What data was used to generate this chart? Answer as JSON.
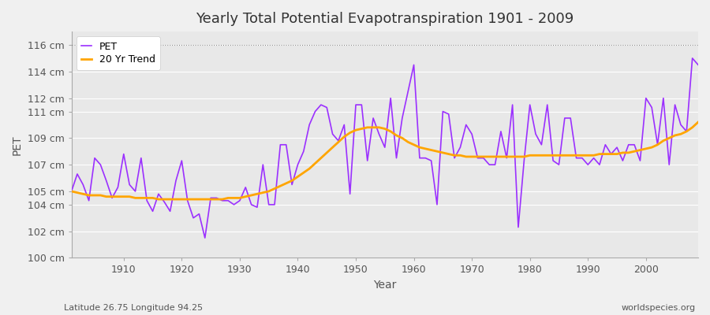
{
  "title": "Yearly Total Potential Evapotranspiration 1901 - 2009",
  "xlabel": "Year",
  "ylabel": "PET",
  "subtitle_left": "Latitude 26.75 Longitude 94.25",
  "subtitle_right": "worldspecies.org",
  "ylim": [
    100,
    117
  ],
  "xlim": [
    1901,
    2009
  ],
  "yticks": [
    100,
    102,
    104,
    105,
    107,
    109,
    111,
    112,
    114,
    116
  ],
  "ytick_labels": [
    "100 cm",
    "102 cm",
    "104 cm",
    "105 cm",
    "107 cm",
    "109 cm",
    "111 cm",
    "112 cm",
    "114 cm",
    "116 cm"
  ],
  "xticks": [
    1910,
    1920,
    1930,
    1940,
    1950,
    1960,
    1970,
    1980,
    1990,
    2000
  ],
  "pet_color": "#9B30FF",
  "trend_color": "#FFA500",
  "fig_bg_color": "#F0F0F0",
  "plot_bg_color": "#E8E8E8",
  "grid_color": "#FFFFFF",
  "top_dotted_color": "#888888",
  "pet_linewidth": 1.2,
  "trend_linewidth": 2.0,
  "pet_data": {
    "years": [
      1901,
      1902,
      1903,
      1904,
      1905,
      1906,
      1907,
      1908,
      1909,
      1910,
      1911,
      1912,
      1913,
      1914,
      1915,
      1916,
      1917,
      1918,
      1919,
      1920,
      1921,
      1922,
      1923,
      1924,
      1925,
      1926,
      1927,
      1928,
      1929,
      1930,
      1931,
      1932,
      1933,
      1934,
      1935,
      1936,
      1937,
      1938,
      1939,
      1940,
      1941,
      1942,
      1943,
      1944,
      1945,
      1946,
      1947,
      1948,
      1949,
      1950,
      1951,
      1952,
      1953,
      1954,
      1955,
      1956,
      1957,
      1958,
      1959,
      1960,
      1961,
      1962,
      1963,
      1964,
      1965,
      1966,
      1967,
      1968,
      1969,
      1970,
      1971,
      1972,
      1973,
      1974,
      1975,
      1976,
      1977,
      1978,
      1979,
      1980,
      1981,
      1982,
      1983,
      1984,
      1985,
      1986,
      1987,
      1988,
      1989,
      1990,
      1991,
      1992,
      1993,
      1994,
      1995,
      1996,
      1997,
      1998,
      1999,
      2000,
      2001,
      2002,
      2003,
      2004,
      2005,
      2006,
      2007,
      2008,
      2009
    ],
    "values": [
      105.0,
      106.3,
      105.5,
      104.3,
      107.5,
      107.0,
      105.8,
      104.5,
      105.3,
      107.8,
      105.5,
      105.0,
      107.5,
      104.3,
      103.5,
      104.8,
      104.2,
      103.5,
      105.8,
      107.3,
      104.3,
      103.0,
      103.3,
      101.5,
      104.5,
      104.5,
      104.3,
      104.3,
      104.0,
      104.3,
      105.3,
      104.0,
      103.8,
      107.0,
      104.0,
      104.0,
      108.5,
      108.5,
      105.5,
      107.0,
      108.0,
      110.0,
      111.0,
      111.5,
      111.3,
      109.3,
      108.8,
      110.0,
      104.8,
      111.5,
      111.5,
      107.3,
      110.5,
      109.3,
      108.3,
      112.0,
      107.5,
      110.5,
      112.5,
      114.5,
      107.5,
      107.5,
      107.3,
      104.0,
      111.0,
      110.8,
      107.5,
      108.3,
      110.0,
      109.3,
      107.5,
      107.5,
      107.0,
      107.0,
      109.5,
      107.5,
      111.5,
      102.3,
      107.3,
      111.5,
      109.3,
      108.5,
      111.5,
      107.3,
      107.0,
      110.5,
      110.5,
      107.5,
      107.5,
      107.0,
      107.5,
      107.0,
      108.5,
      107.8,
      108.3,
      107.3,
      108.5,
      108.5,
      107.3,
      112.0,
      111.3,
      108.5,
      112.0,
      107.0,
      111.5,
      110.0,
      109.5,
      115.0,
      114.5
    ]
  },
  "trend_data": {
    "years": [
      1901,
      1902,
      1903,
      1904,
      1905,
      1906,
      1907,
      1908,
      1909,
      1910,
      1911,
      1912,
      1913,
      1914,
      1915,
      1916,
      1917,
      1918,
      1919,
      1920,
      1921,
      1922,
      1923,
      1924,
      1925,
      1926,
      1927,
      1928,
      1929,
      1930,
      1931,
      1932,
      1933,
      1934,
      1935,
      1936,
      1937,
      1938,
      1939,
      1940,
      1941,
      1942,
      1943,
      1944,
      1945,
      1946,
      1947,
      1948,
      1949,
      1950,
      1951,
      1952,
      1953,
      1954,
      1955,
      1956,
      1957,
      1958,
      1959,
      1960,
      1961,
      1962,
      1963,
      1964,
      1965,
      1966,
      1967,
      1968,
      1969,
      1970,
      1971,
      1972,
      1973,
      1974,
      1975,
      1976,
      1977,
      1978,
      1979,
      1980,
      1981,
      1982,
      1983,
      1984,
      1985,
      1986,
      1987,
      1988,
      1989,
      1990,
      1991,
      1992,
      1993,
      1994,
      1995,
      1996,
      1997,
      1998,
      1999,
      2000,
      2001,
      2002,
      2003,
      2004,
      2005,
      2006,
      2007,
      2008,
      2009
    ],
    "values": [
      105.0,
      104.9,
      104.8,
      104.7,
      104.7,
      104.7,
      104.6,
      104.6,
      104.6,
      104.6,
      104.6,
      104.5,
      104.5,
      104.5,
      104.5,
      104.4,
      104.4,
      104.4,
      104.4,
      104.4,
      104.4,
      104.4,
      104.4,
      104.4,
      104.4,
      104.4,
      104.4,
      104.5,
      104.5,
      104.5,
      104.6,
      104.7,
      104.8,
      104.9,
      105.0,
      105.2,
      105.4,
      105.6,
      105.8,
      106.1,
      106.4,
      106.7,
      107.1,
      107.5,
      107.9,
      108.3,
      108.7,
      109.1,
      109.4,
      109.6,
      109.7,
      109.8,
      109.8,
      109.8,
      109.7,
      109.5,
      109.2,
      109.0,
      108.7,
      108.5,
      108.3,
      108.2,
      108.1,
      108.0,
      107.9,
      107.8,
      107.7,
      107.7,
      107.6,
      107.6,
      107.6,
      107.6,
      107.6,
      107.6,
      107.6,
      107.6,
      107.6,
      107.6,
      107.6,
      107.7,
      107.7,
      107.7,
      107.7,
      107.7,
      107.7,
      107.7,
      107.7,
      107.7,
      107.7,
      107.7,
      107.7,
      107.8,
      107.8,
      107.8,
      107.8,
      107.9,
      107.9,
      108.0,
      108.1,
      108.2,
      108.3,
      108.5,
      108.8,
      109.0,
      109.2,
      109.3,
      109.5,
      109.8,
      110.2
    ]
  },
  "legend_pet_label": "PET",
  "legend_trend_label": "20 Yr Trend",
  "title_fontsize": 13,
  "axis_label_fontsize": 10,
  "tick_fontsize": 9,
  "legend_fontsize": 9
}
